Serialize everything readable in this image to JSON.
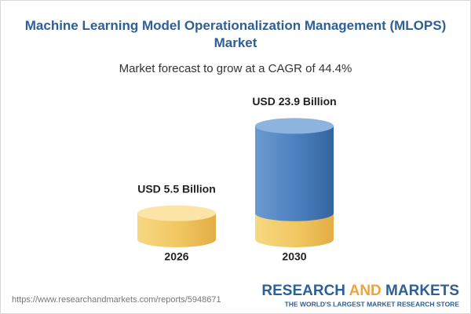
{
  "chart_data": {
    "type": "bar",
    "title": "Machine Learning Model Operationalization Management (MLOPS) Market",
    "subtitle": "Market forecast to grow at a CAGR of 44.4%",
    "categories": [
      "2026",
      "2030"
    ],
    "values": [
      5.5,
      23.9
    ],
    "value_labels": [
      "USD 5.5 Billion",
      "USD 23.9 Billion"
    ],
    "colors": [
      "#f0c660",
      "#4a7fbd"
    ]
  },
  "source": "https://www.researchandmarkets.com/reports/5948671",
  "brand": {
    "name_parts": [
      "RESEARCH",
      "AND",
      "MARKETS"
    ],
    "tagline": "THE WORLD'S LARGEST MARKET RESEARCH STORE"
  }
}
